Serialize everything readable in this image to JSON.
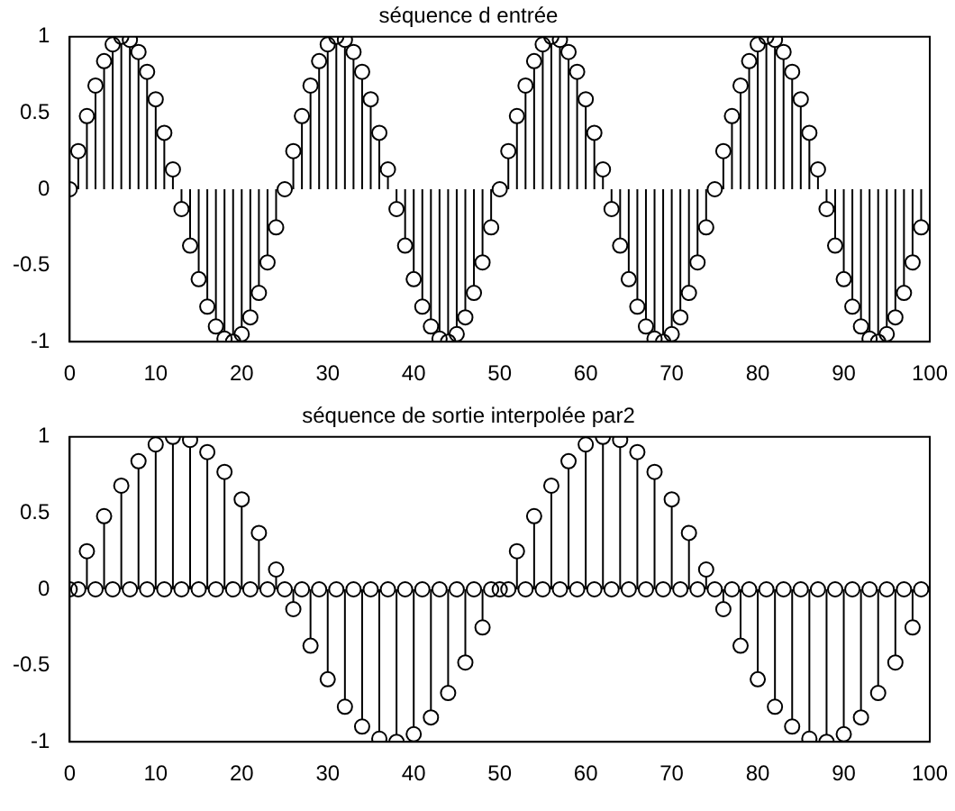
{
  "chart_data": [
    {
      "type": "lollipop",
      "title": "séquence d entrée",
      "x": [
        0,
        1,
        2,
        3,
        4,
        5,
        6,
        7,
        8,
        9,
        10,
        11,
        12,
        13,
        14,
        15,
        16,
        17,
        18,
        19,
        20,
        21,
        22,
        23,
        24,
        25,
        26,
        27,
        28,
        29,
        30,
        31,
        32,
        33,
        34,
        35,
        36,
        37,
        38,
        39,
        40,
        41,
        42,
        43,
        44,
        45,
        46,
        47,
        48,
        49,
        50,
        51,
        52,
        53,
        54,
        55,
        56,
        57,
        58,
        59,
        60,
        61,
        62,
        63,
        64,
        65,
        66,
        67,
        68,
        69,
        70,
        71,
        72,
        73,
        74,
        75,
        76,
        77,
        78,
        79,
        80,
        81,
        82,
        83,
        84,
        85,
        86,
        87,
        88,
        89,
        90,
        91,
        92,
        93,
        94,
        95,
        96,
        97,
        98,
        99
      ],
      "series": [
        {
          "color": "#000000",
          "values": [
            0,
            0.25,
            0.48,
            0.68,
            0.84,
            0.95,
            1,
            0.98,
            0.9,
            0.77,
            0.59,
            0.37,
            0.13,
            -0.13,
            -0.37,
            -0.59,
            -0.77,
            -0.9,
            -0.98,
            -1,
            -0.95,
            -0.84,
            -0.68,
            -0.48,
            -0.25,
            0,
            0.25,
            0.48,
            0.68,
            0.84,
            0.95,
            1,
            0.98,
            0.9,
            0.77,
            0.59,
            0.37,
            0.13,
            -0.13,
            -0.37,
            -0.59,
            -0.77,
            -0.9,
            -0.98,
            -1,
            -0.95,
            -0.84,
            -0.68,
            -0.48,
            -0.25,
            0,
            0.25,
            0.48,
            0.68,
            0.84,
            0.95,
            1,
            0.98,
            0.9,
            0.77,
            0.59,
            0.37,
            0.13,
            -0.13,
            -0.37,
            -0.59,
            -0.77,
            -0.9,
            -0.98,
            -1,
            -0.95,
            -0.84,
            -0.68,
            -0.48,
            -0.25,
            0,
            0.25,
            0.48,
            0.68,
            0.84,
            0.95,
            1,
            0.98,
            0.9,
            0.77,
            0.59,
            0.37,
            0.13,
            -0.13,
            -0.37,
            -0.59,
            -0.77,
            -0.9,
            -0.98,
            -1,
            -0.95,
            -0.84,
            -0.68,
            -0.48,
            -0.25
          ]
        }
      ],
      "xlim": [
        0,
        100
      ],
      "xticks": [
        0,
        10,
        20,
        30,
        40,
        50,
        60,
        70,
        80,
        90,
        100
      ],
      "ylim": [
        -1,
        1
      ],
      "yticks": [
        -1,
        -0.5,
        0,
        0.5,
        1
      ],
      "marker": "circle"
    },
    {
      "type": "lollipop",
      "title": "séquence de sortie interpolée par2",
      "x": [
        0,
        1,
        2,
        3,
        4,
        5,
        6,
        7,
        8,
        9,
        10,
        11,
        12,
        13,
        14,
        15,
        16,
        17,
        18,
        19,
        20,
        21,
        22,
        23,
        24,
        25,
        26,
        27,
        28,
        29,
        30,
        31,
        32,
        33,
        34,
        35,
        36,
        37,
        38,
        39,
        40,
        41,
        42,
        43,
        44,
        45,
        46,
        47,
        48,
        49,
        50,
        51,
        52,
        53,
        54,
        55,
        56,
        57,
        58,
        59,
        60,
        61,
        62,
        63,
        64,
        65,
        66,
        67,
        68,
        69,
        70,
        71,
        72,
        73,
        74,
        75,
        76,
        77,
        78,
        79,
        80,
        81,
        82,
        83,
        84,
        85,
        86,
        87,
        88,
        89,
        90,
        91,
        92,
        93,
        94,
        95,
        96,
        97,
        98,
        99
      ],
      "series": [
        {
          "color": "#000000",
          "values": [
            0,
            0,
            0.25,
            0,
            0.48,
            0,
            0.68,
            0,
            0.84,
            0,
            0.95,
            0,
            1,
            0,
            0.98,
            0,
            0.9,
            0,
            0.77,
            0,
            0.59,
            0,
            0.37,
            0,
            0.13,
            0,
            -0.13,
            0,
            -0.37,
            0,
            -0.59,
            0,
            -0.77,
            0,
            -0.9,
            0,
            -0.98,
            0,
            -1,
            0,
            -0.95,
            0,
            -0.84,
            0,
            -0.68,
            0,
            -0.48,
            0,
            -0.25,
            0,
            0,
            0,
            0.25,
            0,
            0.48,
            0,
            0.68,
            0,
            0.84,
            0,
            0.95,
            0,
            1,
            0,
            0.98,
            0,
            0.9,
            0,
            0.77,
            0,
            0.59,
            0,
            0.37,
            0,
            0.13,
            0,
            -0.13,
            0,
            -0.37,
            0,
            -0.59,
            0,
            -0.77,
            0,
            -0.9,
            0,
            -0.98,
            0,
            -1,
            0,
            -0.95,
            0,
            -0.84,
            0,
            -0.68,
            0,
            -0.48,
            0,
            -0.25,
            0
          ]
        }
      ],
      "xlim": [
        0,
        100
      ],
      "xticks": [
        0,
        10,
        20,
        30,
        40,
        50,
        60,
        70,
        80,
        90,
        100
      ],
      "ylim": [
        -1,
        1
      ],
      "yticks": [
        -1,
        -0.5,
        0,
        0.5,
        1
      ],
      "marker": "circle"
    }
  ]
}
